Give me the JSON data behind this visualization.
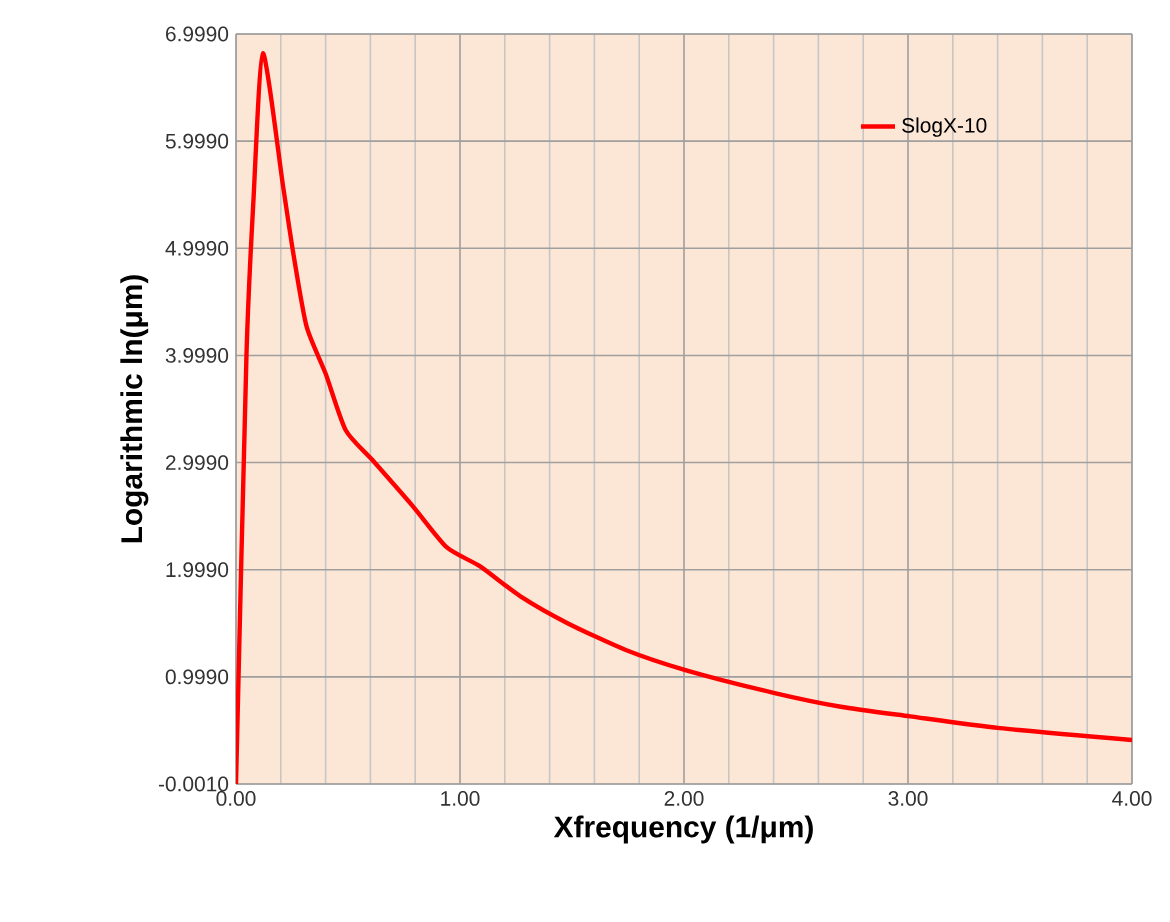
{
  "chart_data": {
    "type": "line",
    "xlabel": "Xfrequency (1/μm)",
    "ylabel": "Logarithmic ln(μm)",
    "x": [
      0,
      0.047,
      0.078,
      0.12,
      0.21,
      0.256,
      0.315,
      0.4,
      0.49,
      0.61,
      0.79,
      0.94,
      1.09,
      1.27,
      1.48,
      1.74,
      2.01,
      2.4,
      2.7,
      3.01,
      3.41,
      4.0
    ],
    "series": [
      {
        "name": "SlogX-10",
        "color": "#ff0000",
        "values": [
          0,
          4.02,
          5.45,
          6.82,
          5.58,
          4.95,
          4.27,
          3.83,
          3.3,
          3.02,
          2.59,
          2.21,
          2.03,
          1.75,
          1.5,
          1.25,
          1.06,
          0.85,
          0.72,
          0.63,
          0.52,
          0.41
        ]
      }
    ],
    "xlim": [
      0,
      4
    ],
    "ylim": [
      -0.001,
      6.999
    ],
    "xticks": [
      {
        "value": 0,
        "label": "0.00"
      },
      {
        "value": 1,
        "label": "1.00"
      },
      {
        "value": 2,
        "label": "2.00"
      },
      {
        "value": 3,
        "label": "3.00"
      },
      {
        "value": 4,
        "label": "4.00"
      }
    ],
    "yticks": [
      {
        "value": -0.001,
        "label": "-0.0010"
      },
      {
        "value": 0.999,
        "label": "0.9990"
      },
      {
        "value": 1.999,
        "label": "1.9990"
      },
      {
        "value": 2.999,
        "label": "2.9990"
      },
      {
        "value": 3.999,
        "label": "3.9990"
      },
      {
        "value": 4.999,
        "label": "4.9990"
      },
      {
        "value": 5.999,
        "label": "5.9990"
      },
      {
        "value": 6.999,
        "label": "6.9990"
      }
    ],
    "grid": true,
    "legend": "top right",
    "marker": "none",
    "line_style": "solid"
  }
}
